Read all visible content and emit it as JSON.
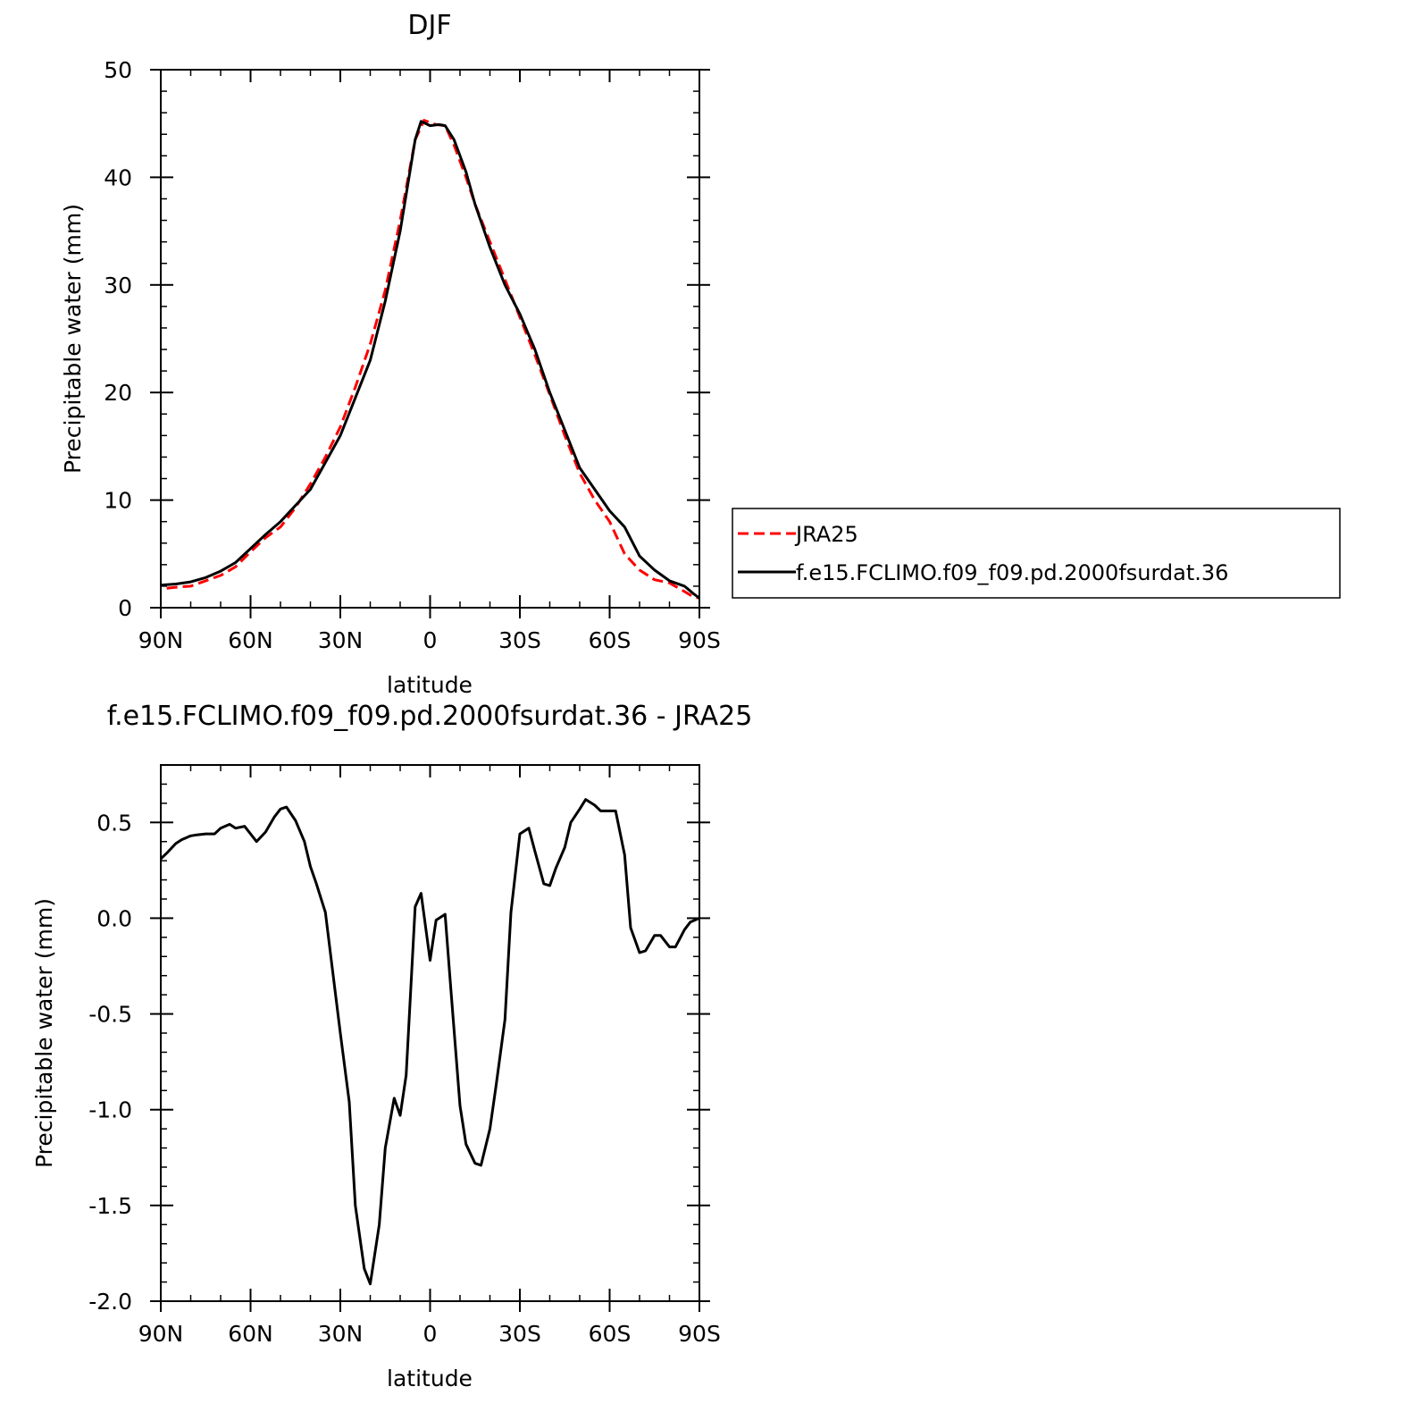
{
  "chart_data": [
    {
      "type": "line",
      "title": "DJF",
      "xlabel": "latitude",
      "ylabel": "Precipitable water (mm)",
      "xlim": [
        90,
        -90
      ],
      "ylim": [
        0,
        50
      ],
      "x_ticks": [
        90,
        60,
        30,
        0,
        -30,
        -60,
        -90
      ],
      "x_tick_labels": [
        "90N",
        "60N",
        "30N",
        "0",
        "30S",
        "60S",
        "90S"
      ],
      "y_ticks": [
        0,
        10,
        20,
        30,
        40,
        50
      ],
      "y_tick_labels": [
        "0",
        "10",
        "20",
        "30",
        "40",
        "50"
      ],
      "grid": false,
      "legend_position": "right",
      "series": [
        {
          "name": "JRA25",
          "color": "#ff0000",
          "dash": "dashed",
          "x": [
            88,
            85,
            80,
            75,
            70,
            65,
            60,
            55,
            50,
            45,
            40,
            35,
            30,
            25,
            20,
            15,
            10,
            5,
            2,
            -2,
            -5,
            -8,
            -12,
            -15,
            -20,
            -25,
            -30,
            -35,
            -40,
            -45,
            -50,
            -55,
            -60,
            -65,
            -70,
            -75,
            -80,
            -85,
            -88,
            -90
          ],
          "y": [
            1.8,
            1.9,
            2.0,
            2.5,
            3.0,
            3.8,
            5.2,
            6.5,
            7.5,
            9.3,
            11.5,
            14.0,
            16.8,
            20.5,
            24.5,
            29.5,
            36.0,
            43.5,
            45.3,
            44.9,
            44.8,
            43.0,
            40.0,
            37.5,
            34.0,
            30.5,
            27.0,
            23.5,
            19.8,
            16.0,
            12.5,
            10.0,
            8.0,
            5.0,
            3.5,
            2.6,
            2.3,
            1.5,
            1.0,
            0.9
          ]
        },
        {
          "name": "f.e15.FCLIMO.f09_f09.pd.2000fsurdat.36",
          "color": "#000000",
          "dash": "solid",
          "x": [
            90,
            85,
            80,
            75,
            70,
            65,
            60,
            55,
            50,
            45,
            40,
            35,
            30,
            25,
            20,
            15,
            10,
            5,
            3,
            0,
            -3,
            -5,
            -8,
            -12,
            -15,
            -20,
            -25,
            -30,
            -35,
            -40,
            -45,
            -50,
            -55,
            -60,
            -65,
            -70,
            -75,
            -80,
            -85,
            -88,
            -90
          ],
          "y": [
            2.1,
            2.2,
            2.4,
            2.8,
            3.4,
            4.2,
            5.5,
            6.8,
            8.0,
            9.5,
            11.0,
            13.5,
            16.0,
            19.5,
            23.0,
            28.5,
            35.0,
            43.5,
            45.2,
            44.8,
            44.9,
            44.8,
            43.5,
            40.5,
            37.5,
            33.5,
            30.0,
            27.3,
            24.0,
            20.0,
            16.5,
            13.0,
            11.0,
            9.0,
            7.5,
            4.8,
            3.5,
            2.5,
            2.0,
            1.3,
            0.9
          ]
        }
      ]
    },
    {
      "type": "line",
      "title": "f.e15.FCLIMO.f09_f09.pd.2000fsurdat.36 - JRA25",
      "xlabel": "latitude",
      "ylabel": "Precipitable water (mm)",
      "xlim": [
        90,
        -90
      ],
      "ylim": [
        -2.0,
        0.8
      ],
      "x_ticks": [
        90,
        60,
        30,
        0,
        -30,
        -60,
        -90
      ],
      "x_tick_labels": [
        "90N",
        "60N",
        "30N",
        "0",
        "30S",
        "60S",
        "90S"
      ],
      "y_ticks": [
        -2.0,
        -1.5,
        -1.0,
        -0.5,
        0.0,
        0.5
      ],
      "y_tick_labels": [
        "-2.0",
        "-1.5",
        "-1.0",
        "-0.5",
        "0.0",
        "0.5"
      ],
      "grid": false,
      "series": [
        {
          "color": "#000000",
          "dash": "solid",
          "x": [
            90,
            88,
            85,
            83,
            80,
            78,
            75,
            72,
            70,
            67,
            65,
            62,
            58,
            55,
            52,
            50,
            48,
            45,
            42,
            40,
            38,
            35,
            33,
            30,
            27,
            25,
            22,
            20,
            17,
            15,
            12,
            10,
            8,
            5,
            3,
            0,
            -2,
            -5,
            -7,
            -10,
            -12,
            -15,
            -17,
            -20,
            -22,
            -25,
            -27,
            -30,
            -33,
            -35,
            -38,
            -40,
            -42,
            -45,
            -47,
            -50,
            -52,
            -55,
            -57,
            -60,
            -62,
            -65,
            -67,
            -70,
            -72,
            -75,
            -77,
            -80,
            -82,
            -85,
            -87,
            -90
          ],
          "y": [
            0.31,
            0.34,
            0.39,
            0.41,
            0.43,
            0.435,
            0.44,
            0.44,
            0.47,
            0.49,
            0.47,
            0.48,
            0.4,
            0.45,
            0.53,
            0.57,
            0.58,
            0.51,
            0.4,
            0.27,
            0.18,
            0.03,
            -0.22,
            -0.6,
            -0.96,
            -1.5,
            -1.83,
            -1.91,
            -1.6,
            -1.2,
            -0.94,
            -1.03,
            -0.82,
            0.06,
            0.13,
            -0.22,
            -0.01,
            0.02,
            -0.38,
            -0.98,
            -1.18,
            -1.28,
            -1.29,
            -1.1,
            -0.88,
            -0.53,
            0.03,
            0.44,
            0.47,
            0.35,
            0.18,
            0.17,
            0.26,
            0.37,
            0.5,
            0.57,
            0.62,
            0.59,
            0.56,
            0.56,
            0.56,
            0.33,
            -0.05,
            -0.18,
            -0.17,
            -0.09,
            -0.09,
            -0.15,
            -0.15,
            -0.06,
            -0.02,
            0.0
          ]
        }
      ]
    }
  ]
}
